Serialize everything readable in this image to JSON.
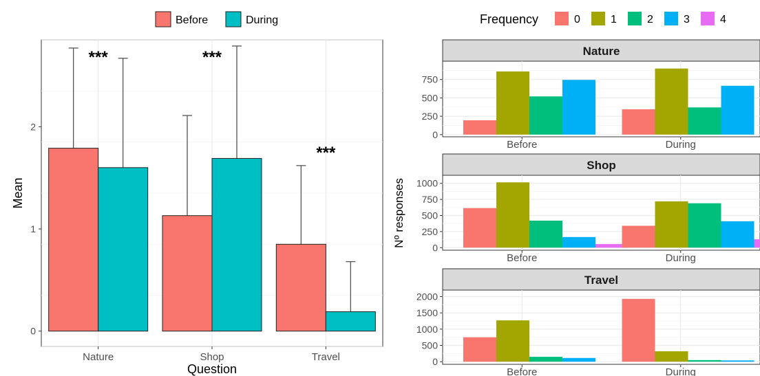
{
  "chart_data": [
    {
      "type": "bar",
      "xlabel": "Question",
      "ylabel": "Mean",
      "categories": [
        "Nature",
        "Shop",
        "Travel"
      ],
      "ylim": [
        -0.15,
        2.85
      ],
      "yticks": [
        0,
        1,
        2
      ],
      "grid": true,
      "legend_position": "top",
      "series": [
        {
          "name": "Before",
          "color": "#F8766D",
          "values": [
            1.79,
            1.13,
            0.85
          ],
          "error_upper": [
            2.77,
            2.11,
            1.62
          ]
        },
        {
          "name": "During",
          "color": "#00BFC4",
          "values": [
            1.6,
            1.69,
            0.19
          ],
          "error_upper": [
            2.67,
            2.79,
            0.68
          ]
        }
      ],
      "annotations": [
        {
          "category": "Nature",
          "text": "***"
        },
        {
          "category": "Shop",
          "text": "***"
        },
        {
          "category": "Travel",
          "text": "***"
        }
      ]
    },
    {
      "type": "bar",
      "ylabel": "Nº responses",
      "legend_title": "Frequency",
      "legend_position": "top",
      "legend": [
        {
          "label": "0",
          "color": "#F8766D"
        },
        {
          "label": "1",
          "color": "#A3A500"
        },
        {
          "label": "2",
          "color": "#00BF7D"
        },
        {
          "label": "3",
          "color": "#00B0F6"
        },
        {
          "label": "4",
          "color": "#E76BF3"
        }
      ],
      "categories": [
        "Before",
        "During"
      ],
      "panels": [
        {
          "title": "Nature",
          "ylim": [
            -30,
            1000
          ],
          "yticks": [
            0,
            250,
            500,
            750
          ],
          "ytick_labels": [
            "0",
            "250",
            "500",
            "750"
          ],
          "values": {
            "Before": [
              195,
              860,
              520,
              745
            ],
            "During": [
              345,
              900,
              370,
              665
            ]
          }
        },
        {
          "title": "Shop",
          "ylim": [
            -40,
            1125
          ],
          "yticks": [
            0,
            250,
            500,
            750,
            1000
          ],
          "ytick_labels": [
            "0",
            "250",
            "500",
            "750",
            "1000"
          ],
          "values": {
            "Before": [
              615,
              1015,
              420,
              165,
              55
            ],
            "During": [
              340,
              720,
              690,
              410,
              130
            ]
          }
        },
        {
          "title": "Travel",
          "ylim": [
            -80,
            2200
          ],
          "yticks": [
            0,
            500,
            1000,
            1500,
            2000
          ],
          "ytick_labels": [
            "0",
            "500",
            "1000",
            "1500",
            "2000"
          ],
          "values": {
            "Before": [
              750,
              1270,
              150,
              115
            ],
            "During": [
              1930,
              320,
              50,
              40
            ]
          }
        }
      ]
    }
  ]
}
